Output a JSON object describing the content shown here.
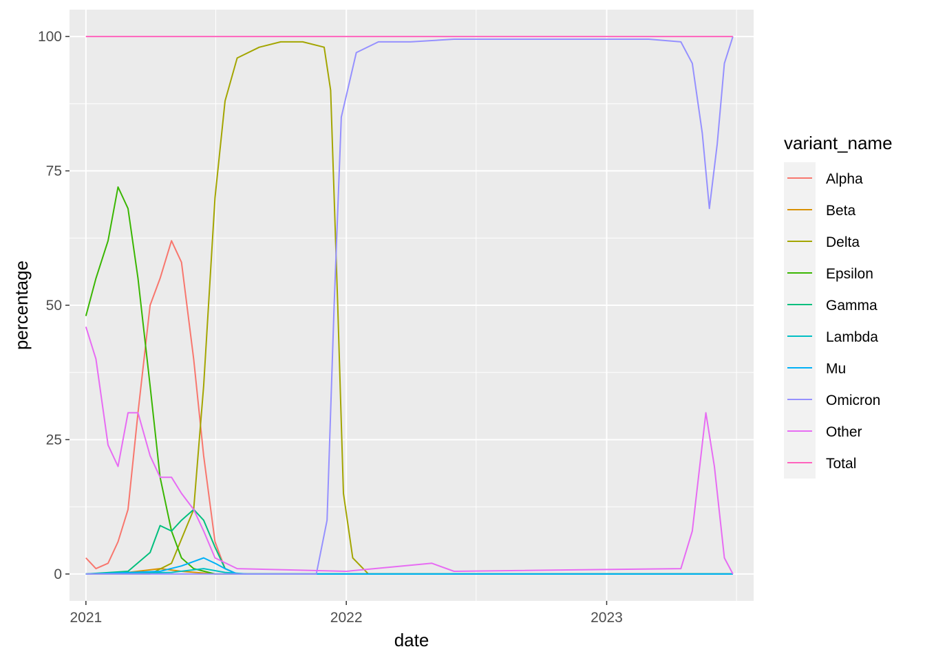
{
  "chart_data": {
    "type": "line",
    "xlabel": "date",
    "ylabel": "percentage",
    "x_ticks": [
      "2021",
      "2022",
      "2023"
    ],
    "x_tick_values": [
      "2021-01-01",
      "2022-01-01",
      "2023-01-01"
    ],
    "xlim": [
      "2020-12-09",
      "2023-07-26"
    ],
    "y_ticks": [
      0,
      25,
      50,
      75,
      100
    ],
    "ylim": [
      -5,
      105
    ],
    "grid": true,
    "background": "#ebebeb",
    "legend": {
      "title": "variant_name",
      "placement": "right"
    },
    "series": [
      {
        "name": "Alpha",
        "color": "#F8766D",
        "points": [
          [
            "2021-01-01",
            3
          ],
          [
            "2021-01-15",
            1
          ],
          [
            "2021-02-01",
            2
          ],
          [
            "2021-02-15",
            6
          ],
          [
            "2021-03-01",
            12
          ],
          [
            "2021-03-15",
            30
          ],
          [
            "2021-04-01",
            50
          ],
          [
            "2021-04-15",
            55
          ],
          [
            "2021-05-01",
            62
          ],
          [
            "2021-05-15",
            58
          ],
          [
            "2021-06-01",
            40
          ],
          [
            "2021-06-15",
            22
          ],
          [
            "2021-07-01",
            6
          ],
          [
            "2021-07-15",
            1
          ],
          [
            "2021-08-01",
            0
          ],
          [
            "2023-06-27",
            0
          ]
        ]
      },
      {
        "name": "Beta",
        "color": "#D89000",
        "points": [
          [
            "2021-01-01",
            0
          ],
          [
            "2021-03-01",
            0.3
          ],
          [
            "2021-04-15",
            1
          ],
          [
            "2021-05-15",
            0.5
          ],
          [
            "2021-07-01",
            0
          ],
          [
            "2023-06-27",
            0
          ]
        ]
      },
      {
        "name": "Delta",
        "color": "#A3A500",
        "points": [
          [
            "2021-01-01",
            0
          ],
          [
            "2021-04-01",
            0
          ],
          [
            "2021-05-01",
            2
          ],
          [
            "2021-06-01",
            12
          ],
          [
            "2021-06-15",
            35
          ],
          [
            "2021-07-01",
            70
          ],
          [
            "2021-07-15",
            88
          ],
          [
            "2021-08-01",
            96
          ],
          [
            "2021-09-01",
            98
          ],
          [
            "2021-10-01",
            99
          ],
          [
            "2021-11-01",
            99
          ],
          [
            "2021-12-01",
            98
          ],
          [
            "2021-12-10",
            90
          ],
          [
            "2021-12-20",
            50
          ],
          [
            "2021-12-28",
            15
          ],
          [
            "2022-01-10",
            3
          ],
          [
            "2022-02-01",
            0
          ],
          [
            "2023-06-27",
            0
          ]
        ]
      },
      {
        "name": "Epsilon",
        "color": "#39B600",
        "points": [
          [
            "2021-01-01",
            48
          ],
          [
            "2021-01-15",
            55
          ],
          [
            "2021-02-01",
            62
          ],
          [
            "2021-02-15",
            72
          ],
          [
            "2021-03-01",
            68
          ],
          [
            "2021-03-15",
            55
          ],
          [
            "2021-04-01",
            35
          ],
          [
            "2021-04-15",
            18
          ],
          [
            "2021-05-01",
            8
          ],
          [
            "2021-05-15",
            3
          ],
          [
            "2021-06-01",
            1
          ],
          [
            "2021-07-01",
            0
          ],
          [
            "2023-06-27",
            0
          ]
        ]
      },
      {
        "name": "Gamma",
        "color": "#00BF7D",
        "points": [
          [
            "2021-01-01",
            0
          ],
          [
            "2021-03-01",
            0.5
          ],
          [
            "2021-04-01",
            4
          ],
          [
            "2021-04-15",
            9
          ],
          [
            "2021-05-01",
            8
          ],
          [
            "2021-05-15",
            10
          ],
          [
            "2021-06-01",
            12
          ],
          [
            "2021-06-15",
            10
          ],
          [
            "2021-07-01",
            5
          ],
          [
            "2021-07-15",
            1
          ],
          [
            "2021-08-01",
            0
          ],
          [
            "2023-06-27",
            0
          ]
        ]
      },
      {
        "name": "Lambda",
        "color": "#00BFC4",
        "points": [
          [
            "2021-01-01",
            0
          ],
          [
            "2021-05-01",
            0.3
          ],
          [
            "2021-06-15",
            1
          ],
          [
            "2021-07-15",
            0.3
          ],
          [
            "2021-08-15",
            0
          ],
          [
            "2023-06-27",
            0
          ]
        ]
      },
      {
        "name": "Mu",
        "color": "#00B0F6",
        "points": [
          [
            "2021-01-01",
            0
          ],
          [
            "2021-04-15",
            0.5
          ],
          [
            "2021-05-15",
            1.5
          ],
          [
            "2021-06-15",
            3
          ],
          [
            "2021-07-01",
            2
          ],
          [
            "2021-07-15",
            1
          ],
          [
            "2021-08-01",
            0
          ],
          [
            "2023-06-27",
            0
          ]
        ]
      },
      {
        "name": "Omicron",
        "color": "#9590FF",
        "points": [
          [
            "2021-01-01",
            0
          ],
          [
            "2021-11-20",
            0
          ],
          [
            "2021-12-05",
            10
          ],
          [
            "2021-12-15",
            50
          ],
          [
            "2021-12-25",
            85
          ],
          [
            "2022-01-15",
            97
          ],
          [
            "2022-02-15",
            99
          ],
          [
            "2022-04-01",
            99
          ],
          [
            "2022-06-01",
            99.5
          ],
          [
            "2022-09-01",
            99.5
          ],
          [
            "2022-12-01",
            99.5
          ],
          [
            "2023-03-01",
            99.5
          ],
          [
            "2023-04-15",
            99
          ],
          [
            "2023-05-01",
            95
          ],
          [
            "2023-05-15",
            82
          ],
          [
            "2023-05-25",
            68
          ],
          [
            "2023-06-05",
            80
          ],
          [
            "2023-06-15",
            95
          ],
          [
            "2023-06-27",
            100
          ]
        ]
      },
      {
        "name": "Other",
        "color": "#E76BF3",
        "points": [
          [
            "2021-01-01",
            46
          ],
          [
            "2021-01-15",
            40
          ],
          [
            "2021-02-01",
            24
          ],
          [
            "2021-02-15",
            20
          ],
          [
            "2021-03-01",
            30
          ],
          [
            "2021-03-15",
            30
          ],
          [
            "2021-04-01",
            22
          ],
          [
            "2021-04-15",
            18
          ],
          [
            "2021-05-01",
            18
          ],
          [
            "2021-05-15",
            15
          ],
          [
            "2021-06-01",
            12
          ],
          [
            "2021-06-15",
            8
          ],
          [
            "2021-07-01",
            3
          ],
          [
            "2021-08-01",
            1
          ],
          [
            "2022-01-01",
            0.5
          ],
          [
            "2022-05-01",
            2
          ],
          [
            "2022-06-01",
            0.5
          ],
          [
            "2023-04-15",
            1
          ],
          [
            "2023-05-01",
            8
          ],
          [
            "2023-05-20",
            30
          ],
          [
            "2023-06-01",
            20
          ],
          [
            "2023-06-15",
            3
          ],
          [
            "2023-06-27",
            0
          ]
        ]
      },
      {
        "name": "Total",
        "color": "#FF62BC",
        "points": [
          [
            "2021-01-01",
            100
          ],
          [
            "2023-06-27",
            100
          ]
        ]
      }
    ]
  }
}
